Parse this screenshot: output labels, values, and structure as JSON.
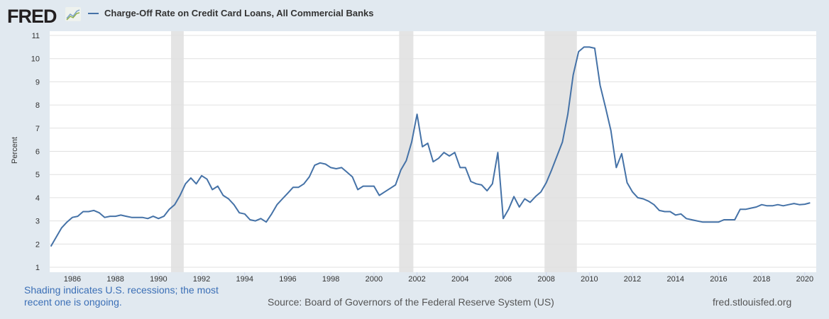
{
  "header": {
    "logo": "FRED",
    "legend_label": "Charge-Off Rate on Credit Card Loans, All Commercial Banks"
  },
  "footer": {
    "note": "Shading indicates U.S. recessions; the most recent one is ongoing.",
    "source": "Source: Board of Governors of the Federal Reserve System (US)",
    "url": "fred.stlouisfed.org"
  },
  "colors": {
    "line": "#4572a7",
    "recession": "#e4e4e4",
    "background": "#e1e9f0"
  },
  "chart_data": {
    "type": "line",
    "title": "Charge-Off Rate on Credit Card Loans, All Commercial Banks",
    "xlabel": "",
    "ylabel": "Percent",
    "ylim": [
      1,
      11
    ],
    "yticks": [
      1,
      2,
      3,
      4,
      5,
      6,
      7,
      8,
      9,
      10,
      11
    ],
    "xticks": [
      1986,
      1988,
      1990,
      1992,
      1994,
      1996,
      1998,
      2000,
      2002,
      2004,
      2006,
      2008,
      2010,
      2012,
      2014,
      2016,
      2018,
      2020
    ],
    "x_start": 1985.0,
    "x_step": 0.25,
    "frequency": "quarterly",
    "recessions": [
      [
        1990.58,
        1991.17
      ],
      [
        2001.17,
        2001.83
      ],
      [
        2007.92,
        2009.42
      ]
    ],
    "grid": true,
    "series": [
      {
        "name": "Charge-Off Rate on Credit Card Loans, All Commercial Banks",
        "values": [
          1.9,
          2.3,
          2.7,
          2.95,
          3.15,
          3.2,
          3.4,
          3.4,
          3.45,
          3.35,
          3.15,
          3.2,
          3.2,
          3.25,
          3.2,
          3.15,
          3.15,
          3.15,
          3.1,
          3.2,
          3.1,
          3.2,
          3.5,
          3.7,
          4.1,
          4.6,
          4.85,
          4.6,
          4.95,
          4.8,
          4.35,
          4.5,
          4.1,
          3.95,
          3.7,
          3.35,
          3.3,
          3.05,
          3.0,
          3.1,
          2.95,
          3.3,
          3.7,
          3.95,
          4.2,
          4.45,
          4.45,
          4.6,
          4.9,
          5.4,
          5.5,
          5.45,
          5.3,
          5.25,
          5.3,
          5.1,
          4.9,
          4.35,
          4.5,
          4.5,
          4.5,
          4.1,
          4.25,
          4.4,
          4.55,
          5.2,
          5.6,
          6.4,
          7.6,
          6.2,
          6.35,
          5.55,
          5.7,
          5.95,
          5.8,
          5.95,
          5.3,
          5.3,
          4.7,
          4.6,
          4.55,
          4.3,
          4.6,
          5.95,
          3.1,
          3.5,
          4.05,
          3.6,
          3.95,
          3.8,
          4.05,
          4.25,
          4.65,
          5.2,
          5.8,
          6.4,
          7.6,
          9.3,
          10.3,
          10.5,
          10.5,
          10.45,
          8.85,
          7.9,
          6.9,
          5.3,
          5.9,
          4.65,
          4.25,
          4.0,
          3.95,
          3.85,
          3.7,
          3.45,
          3.4,
          3.4,
          3.25,
          3.3,
          3.1,
          3.05,
          3.0,
          2.95,
          2.95,
          2.95,
          2.95,
          3.05,
          3.05,
          3.05,
          3.5,
          3.5,
          3.55,
          3.6,
          3.7,
          3.65,
          3.65,
          3.7,
          3.65,
          3.7,
          3.75,
          3.7,
          3.72,
          3.78
        ]
      }
    ]
  }
}
